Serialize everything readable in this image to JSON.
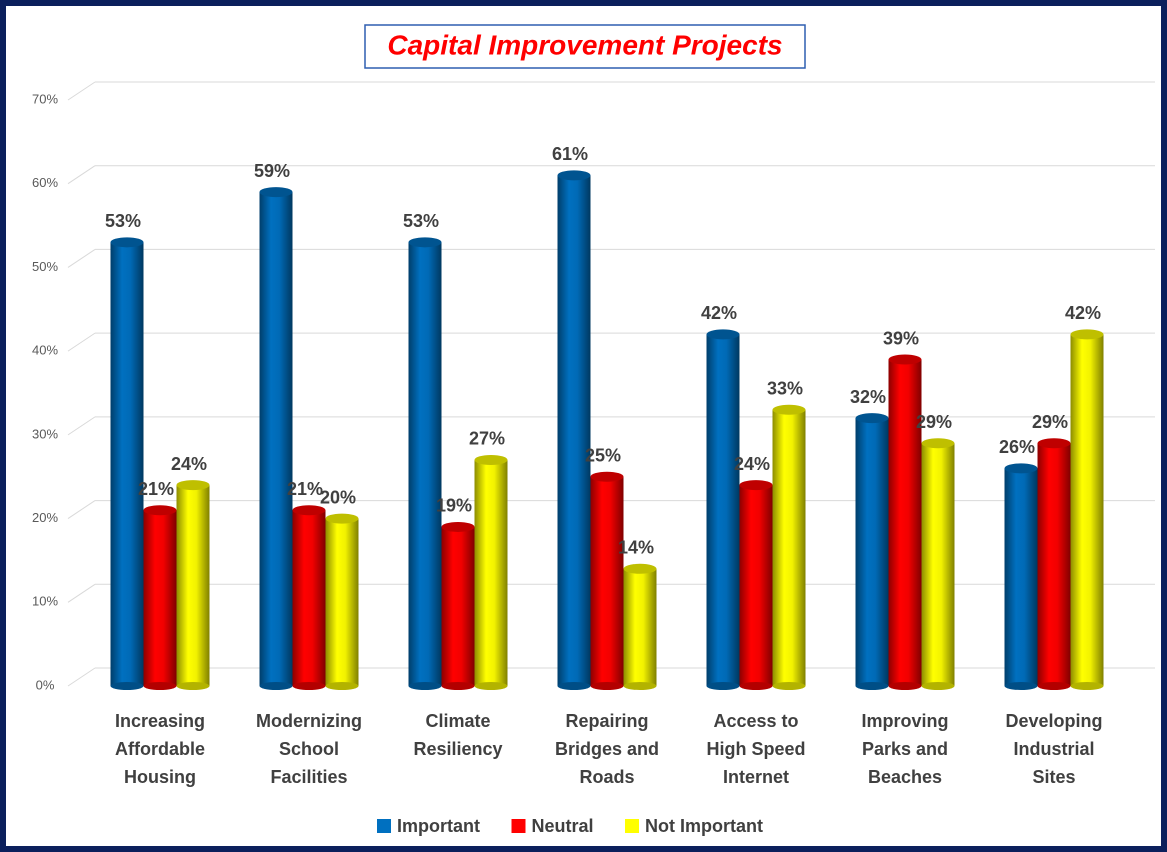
{
  "chart_data": {
    "type": "bar",
    "title": "Capital Improvement Projects",
    "categories": [
      [
        "Increasing",
        "Affordable",
        "Housing"
      ],
      [
        "Modernizing",
        "School",
        "Facilities"
      ],
      [
        "Climate",
        "Resiliency"
      ],
      [
        "Repairing",
        "Bridges and",
        "Roads"
      ],
      [
        "Access to",
        "High Speed",
        "Internet"
      ],
      [
        "Improving",
        "Parks and",
        "Beaches"
      ],
      [
        "Developing",
        "Industrial",
        "Sites"
      ]
    ],
    "series": [
      {
        "name": "Important",
        "color": "#0070c0",
        "values": [
          53,
          59,
          53,
          61,
          42,
          32,
          26
        ],
        "value_labels": [
          "53%",
          "59%",
          "53%",
          "61%",
          "42%",
          "32%",
          "26%"
        ]
      },
      {
        "name": "Neutral",
        "color": "#ff0000",
        "values": [
          21,
          21,
          19,
          25,
          24,
          39,
          29
        ],
        "value_labels": [
          "21%",
          "21%",
          "19%",
          "25%",
          "24%",
          "39%",
          "29%"
        ]
      },
      {
        "name": "Not Important",
        "color": "#ffff00",
        "values": [
          24,
          20,
          27,
          14,
          33,
          29,
          42
        ],
        "value_labels": [
          "24%",
          "20%",
          "27%",
          "14%",
          "33%",
          "29%",
          "42%"
        ]
      }
    ],
    "ylim": [
      0,
      70
    ],
    "yticks": [
      {
        "value": 0,
        "label": "0%"
      },
      {
        "value": 10,
        "label": "10%"
      },
      {
        "value": 20,
        "label": "20%"
      },
      {
        "value": 30,
        "label": "30%"
      },
      {
        "value": 40,
        "label": "40%"
      },
      {
        "value": 50,
        "label": "50%"
      },
      {
        "value": 60,
        "label": "60%"
      },
      {
        "value": 70,
        "label": "70%"
      }
    ],
    "grid": true,
    "legend": "bottom"
  }
}
